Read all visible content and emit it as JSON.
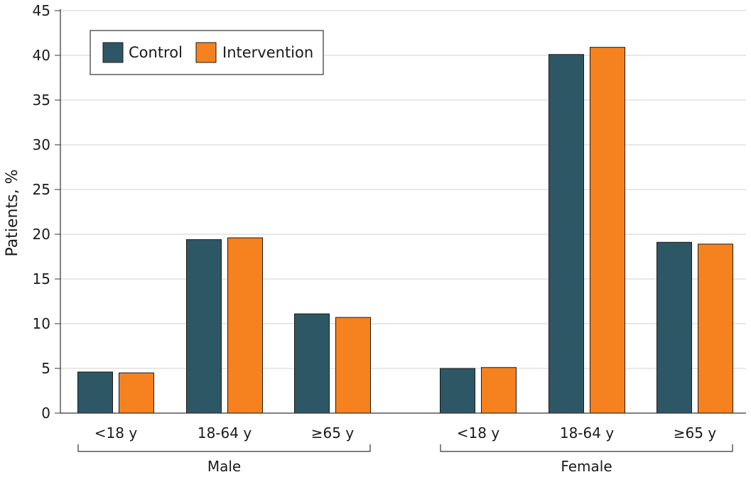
{
  "chart_data": {
    "type": "bar",
    "ylabel": "Patients, %",
    "ylim": [
      0,
      45
    ],
    "yticks": [
      0,
      5,
      10,
      15,
      20,
      25,
      30,
      35,
      40,
      45
    ],
    "grid": true,
    "legend_position": "top-left",
    "groups": [
      {
        "name": "Male",
        "categories": [
          "<18 y",
          "18-64 y",
          "≥65 y"
        ]
      },
      {
        "name": "Female",
        "categories": [
          "<18 y",
          "18-64 y",
          "≥65 y"
        ]
      }
    ],
    "series": [
      {
        "name": "Control",
        "color": "#2e5766",
        "values": [
          4.6,
          19.4,
          11.1,
          5.0,
          40.1,
          19.1
        ]
      },
      {
        "name": "Intervention",
        "color": "#f5821f",
        "values": [
          4.5,
          19.6,
          10.7,
          5.1,
          40.9,
          18.9
        ]
      }
    ]
  }
}
